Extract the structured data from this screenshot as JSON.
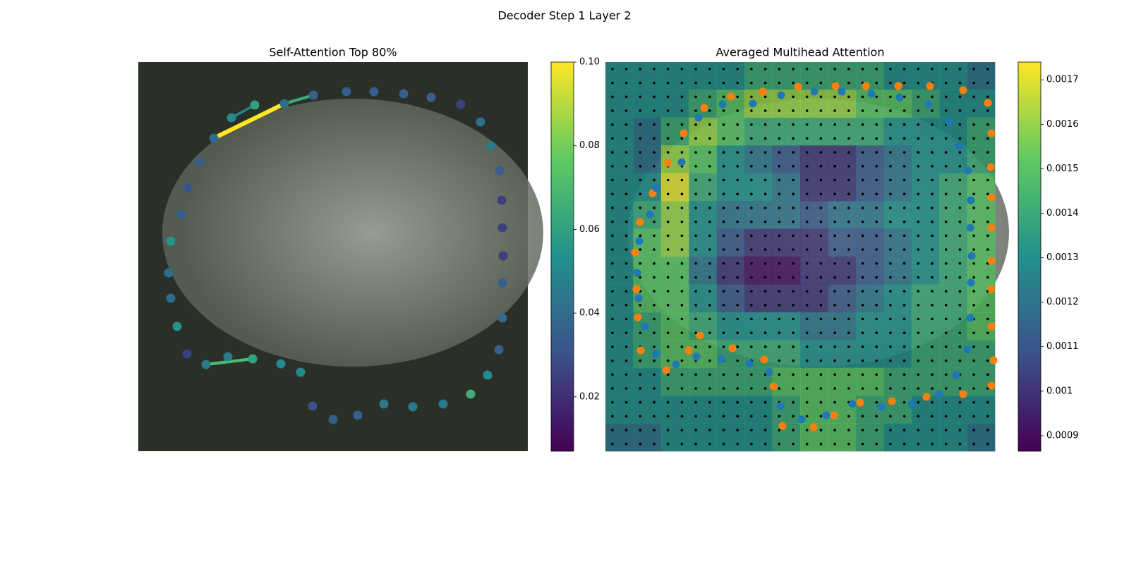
{
  "chart_data": [
    {
      "type": "scatter",
      "title": "Self-Attention Top 80%",
      "xlim": [
        0,
        552
      ],
      "ylim": [
        552,
        0
      ],
      "x": [
        107,
        132,
        165,
        207,
        248,
        295,
        334,
        376,
        415,
        457,
        485,
        500,
        512,
        515,
        516,
        517,
        516,
        516,
        511,
        495,
        471,
        432,
        389,
        348,
        311,
        276,
        247,
        230,
        202,
        162,
        127,
        96,
        69,
        55,
        46,
        43,
        46,
        61,
        70,
        87
      ],
      "y": [
        108,
        79,
        61,
        59,
        47,
        42,
        42,
        45,
        50,
        60,
        85,
        119,
        154,
        196,
        235,
        275,
        313,
        363,
        408,
        444,
        471,
        485,
        489,
        485,
        501,
        507,
        488,
        440,
        428,
        421,
        418,
        429,
        414,
        375,
        335,
        299,
        254,
        216,
        179,
        142
      ],
      "values": [
        0.04,
        0.05,
        0.06,
        0.04,
        0.035,
        0.035,
        0.035,
        0.035,
        0.035,
        0.025,
        0.04,
        0.045,
        0.035,
        0.025,
        0.025,
        0.025,
        0.035,
        0.04,
        0.035,
        0.05,
        0.065,
        0.045,
        0.045,
        0.045,
        0.035,
        0.035,
        0.03,
        0.05,
        0.05,
        0.06,
        0.045,
        0.045,
        0.025,
        0.055,
        0.04,
        0.04,
        0.055,
        0.035,
        0.03,
        0.035
      ],
      "edges": [
        {
          "from": 0,
          "to": 3,
          "value": 0.1
        },
        {
          "from": 3,
          "to": 4,
          "value": 0.065
        },
        {
          "from": 1,
          "to": 2,
          "value": 0.05
        },
        {
          "from": 31,
          "to": 29,
          "value": 0.07
        }
      ],
      "colorbar": {
        "vlim": [
          0.007,
          0.1
        ],
        "ticks": [
          0.02,
          0.04,
          0.06,
          0.08,
          {
            "value": 0.1,
            "label": "0.10"
          }
        ]
      }
    },
    {
      "type": "heatmap",
      "title": "Averaged Multihead Attention",
      "xlim": [
        0,
        552
      ],
      "ylim": [
        552,
        0
      ],
      "values": [
        [
          0.0013,
          0.0013,
          0.0013,
          0.0013,
          0.0013,
          0.0014,
          0.0014,
          0.0014,
          0.0014,
          0.0014,
          0.0013,
          0.0013,
          0.0013,
          0.0012
        ],
        [
          0.0013,
          0.0013,
          0.0013,
          0.0014,
          0.0015,
          0.0016,
          0.0016,
          0.0016,
          0.0016,
          0.0015,
          0.0015,
          0.0014,
          0.0013,
          0.0013
        ],
        [
          0.0013,
          0.0012,
          0.0014,
          0.0016,
          0.0015,
          0.0014,
          0.0014,
          0.0014,
          0.0014,
          0.0014,
          0.0013,
          0.0013,
          0.0013,
          0.0014
        ],
        [
          0.0013,
          0.0012,
          0.0016,
          0.0015,
          0.0013,
          0.0012,
          0.0011,
          0.001,
          0.001,
          0.0011,
          0.0012,
          0.0013,
          0.0013,
          0.0014
        ],
        [
          0.0013,
          0.0013,
          0.0017,
          0.0014,
          0.0013,
          0.0013,
          0.0012,
          0.001,
          0.001,
          0.0011,
          0.0012,
          0.0013,
          0.0014,
          0.0015
        ],
        [
          0.0013,
          0.0014,
          0.0016,
          0.0013,
          0.0012,
          0.0012,
          0.0012,
          0.0011,
          0.0012,
          0.0012,
          0.0013,
          0.0013,
          0.0014,
          0.0015
        ],
        [
          0.0013,
          0.0015,
          0.0016,
          0.0013,
          0.0011,
          0.001,
          0.001,
          0.001,
          0.0011,
          0.0011,
          0.0012,
          0.0013,
          0.0014,
          0.0015
        ],
        [
          0.0013,
          0.0015,
          0.0015,
          0.0012,
          0.001,
          0.0009,
          0.0009,
          0.001,
          0.001,
          0.0011,
          0.0012,
          0.0013,
          0.0014,
          0.0015
        ],
        [
          0.0013,
          0.0015,
          0.0015,
          0.0013,
          0.0011,
          0.001,
          0.001,
          0.001,
          0.0011,
          0.0012,
          0.0013,
          0.0014,
          0.0014,
          0.0015
        ],
        [
          0.0013,
          0.0014,
          0.0015,
          0.0014,
          0.0013,
          0.0013,
          0.0013,
          0.0012,
          0.0012,
          0.0013,
          0.0013,
          0.0014,
          0.0014,
          0.0015
        ],
        [
          0.0013,
          0.0014,
          0.0015,
          0.0015,
          0.0014,
          0.0014,
          0.0014,
          0.0013,
          0.0013,
          0.0013,
          0.0013,
          0.0014,
          0.0014,
          0.0014
        ],
        [
          0.0013,
          0.0013,
          0.0014,
          0.0014,
          0.0014,
          0.0014,
          0.0015,
          0.0015,
          0.0015,
          0.0015,
          0.0014,
          0.0014,
          0.0014,
          0.0014
        ],
        [
          0.0013,
          0.0013,
          0.0013,
          0.0013,
          0.0013,
          0.0013,
          0.0014,
          0.0015,
          0.0015,
          0.0014,
          0.0014,
          0.0013,
          0.0013,
          0.0013
        ],
        [
          0.0012,
          0.0012,
          0.0013,
          0.0013,
          0.0013,
          0.0013,
          0.0014,
          0.0015,
          0.0015,
          0.0014,
          0.0013,
          0.0013,
          0.0013,
          0.0012
        ]
      ],
      "series": [
        {
          "color": "#ff7f0e",
          "x": [
            223,
            273,
            326,
            369,
            415,
            460,
            507,
            542,
            547,
            546,
            547,
            547,
            547,
            547,
            547,
            550,
            547,
            507,
            455,
            406,
            361,
            324,
            295,
            251,
            238,
            225,
            180,
            134,
            118,
            86,
            50,
            46,
            44,
            42,
            49,
            67,
            88,
            111,
            140,
            178
          ],
          "y": [
            42,
            35,
            34,
            34,
            34,
            34,
            40,
            58,
            101,
            149,
            192,
            235,
            282,
            322,
            375,
            423,
            459,
            471,
            475,
            481,
            483,
            501,
            518,
            516,
            460,
            422,
            406,
            388,
            409,
            437,
            409,
            362,
            322,
            270,
            227,
            186,
            143,
            101,
            65,
            49
          ]
        },
        {
          "color": "#1f77b4",
          "x": [
            249,
            296,
            335,
            377,
            417,
            458,
            487,
            501,
            514,
            518,
            517,
            519,
            518,
            517,
            513,
            497,
            473,
            434,
            391,
            350,
            313,
            278,
            248,
            232,
            204,
            164,
            129,
            100,
            72,
            56,
            47,
            45,
            48,
            63,
            72,
            108,
            132,
            166,
            209
          ],
          "y": [
            47,
            42,
            42,
            45,
            50,
            60,
            85,
            119,
            154,
            196,
            235,
            275,
            313,
            363,
            408,
            444,
            471,
            485,
            489,
            485,
            501,
            507,
            488,
            440,
            428,
            421,
            418,
            429,
            414,
            375,
            335,
            299,
            254,
            216,
            179,
            142,
            79,
            60,
            59
          ]
        }
      ],
      "colorbar": {
        "vlim": [
          0.000865,
          0.00174
        ],
        "ticks": [
          0.0009,
          0.001,
          0.0011,
          0.0012,
          0.0013,
          0.0014,
          0.0015,
          0.0016,
          0.0017
        ]
      }
    }
  ],
  "suptitle": "Decoder Step 1 Layer 2"
}
